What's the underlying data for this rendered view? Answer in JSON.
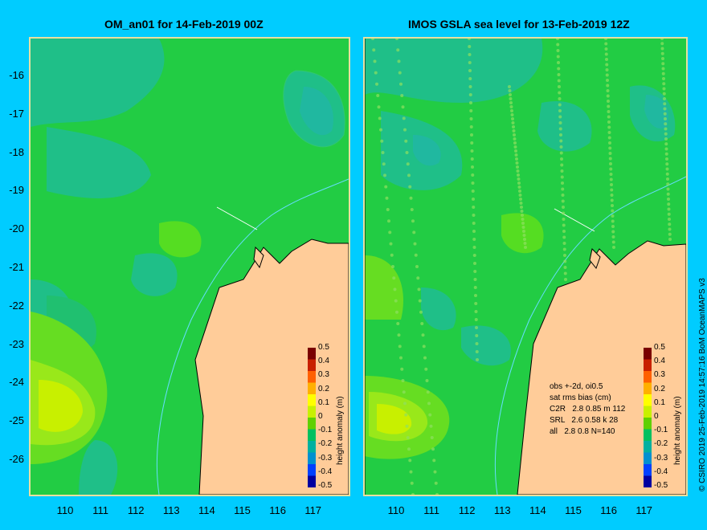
{
  "left_panel": {
    "title": "OM_an01 for 14-Feb-2019 00Z"
  },
  "right_panel": {
    "title": "IMOS GSLA sea level  for 13-Feb-2019 12Z"
  },
  "y_ticks": [
    "-16",
    "-17",
    "-18",
    "-19",
    "-20",
    "-21",
    "-22",
    "-23",
    "-24",
    "-25",
    "-26"
  ],
  "x_ticks": [
    "110",
    "111",
    "112",
    "113",
    "114",
    "115",
    "116",
    "117"
  ],
  "colorbar": {
    "title": "height anomaly (m)",
    "ticks": [
      "0.5",
      "0.4",
      "0.3",
      "0.2",
      "0.1",
      "0",
      "-0.1",
      "-0.2",
      "-0.3",
      "-0.4",
      "-0.5"
    ],
    "colors": [
      "#7a0000",
      "#c82000",
      "#ff6000",
      "#ffb000",
      "#ffff00",
      "#c8f000",
      "#60d000",
      "#00c060",
      "#00b0a0",
      "#0090d0",
      "#0040ff",
      "#0000a0"
    ]
  },
  "stats": {
    "line1": "obs +-2d, oi0.5",
    "line2": "sat rms bias (cm)",
    "line3": "C2R   2.8 0.85 m 112",
    "line4": "SRL   2.6 0.58 k 28",
    "line5": "all   2.8 0.8 N=140"
  },
  "credit": "© CSIRO 2019   25-Feb-2019 14:57:16 BoM OceanMAPS v3",
  "colors": {
    "background": "#00ccff",
    "land": "#ffcc99",
    "sea_base": "#22cc44",
    "coast": "#000000",
    "isobath": "#66ddff"
  }
}
